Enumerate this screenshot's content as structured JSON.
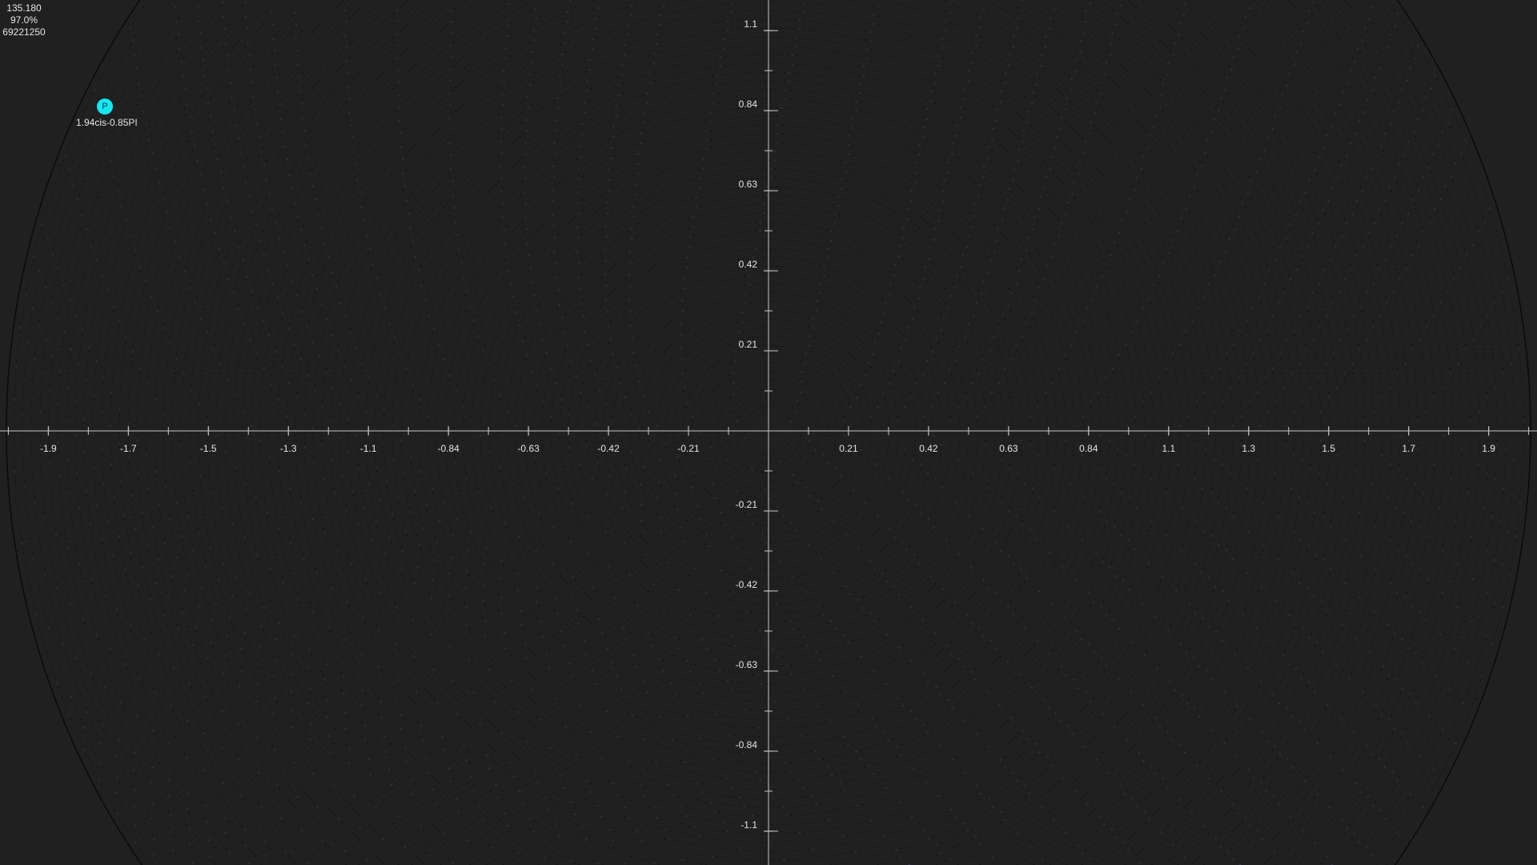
{
  "stats": {
    "fps": "135.180",
    "quality": "97.0%",
    "sample_count": "69221250"
  },
  "point": {
    "letter": "P",
    "label": "1.94cis-0.85PI",
    "modulus": 1.94,
    "argument_pi": -0.85
  },
  "axes": {
    "x_ticks": [
      "-1.9",
      "-1.7",
      "-1.5",
      "-1.3",
      "-1.1",
      "-0.84",
      "-0.63",
      "-0.42",
      "-0.21",
      "0.21",
      "0.42",
      "0.63",
      "0.84",
      "1.1",
      "1.3",
      "1.5",
      "1.7",
      "1.9"
    ],
    "x_values": [
      -1.89,
      -1.68,
      -1.47,
      -1.26,
      -1.05,
      -0.84,
      -0.63,
      -0.42,
      -0.21,
      0.21,
      0.42,
      0.63,
      0.84,
      1.05,
      1.26,
      1.47,
      1.68,
      1.89
    ],
    "y_ticks": [
      "1.1",
      "0.84",
      "0.63",
      "0.42",
      "0.21",
      "-0.21",
      "-0.42",
      "-0.63",
      "-0.84",
      "-1.1"
    ],
    "y_values": [
      1.05,
      0.84,
      0.63,
      0.42,
      0.21,
      -0.21,
      -0.42,
      -0.63,
      -0.84,
      -1.05
    ],
    "unit_circle_radius": 2
  },
  "colors": {
    "background": "#202020",
    "axis": "#c8c8c8",
    "boundary": "#0a0a0a",
    "point": "#16e8f2",
    "dot_dark": "#111111",
    "dot_blue": "#3a3a8c"
  }
}
